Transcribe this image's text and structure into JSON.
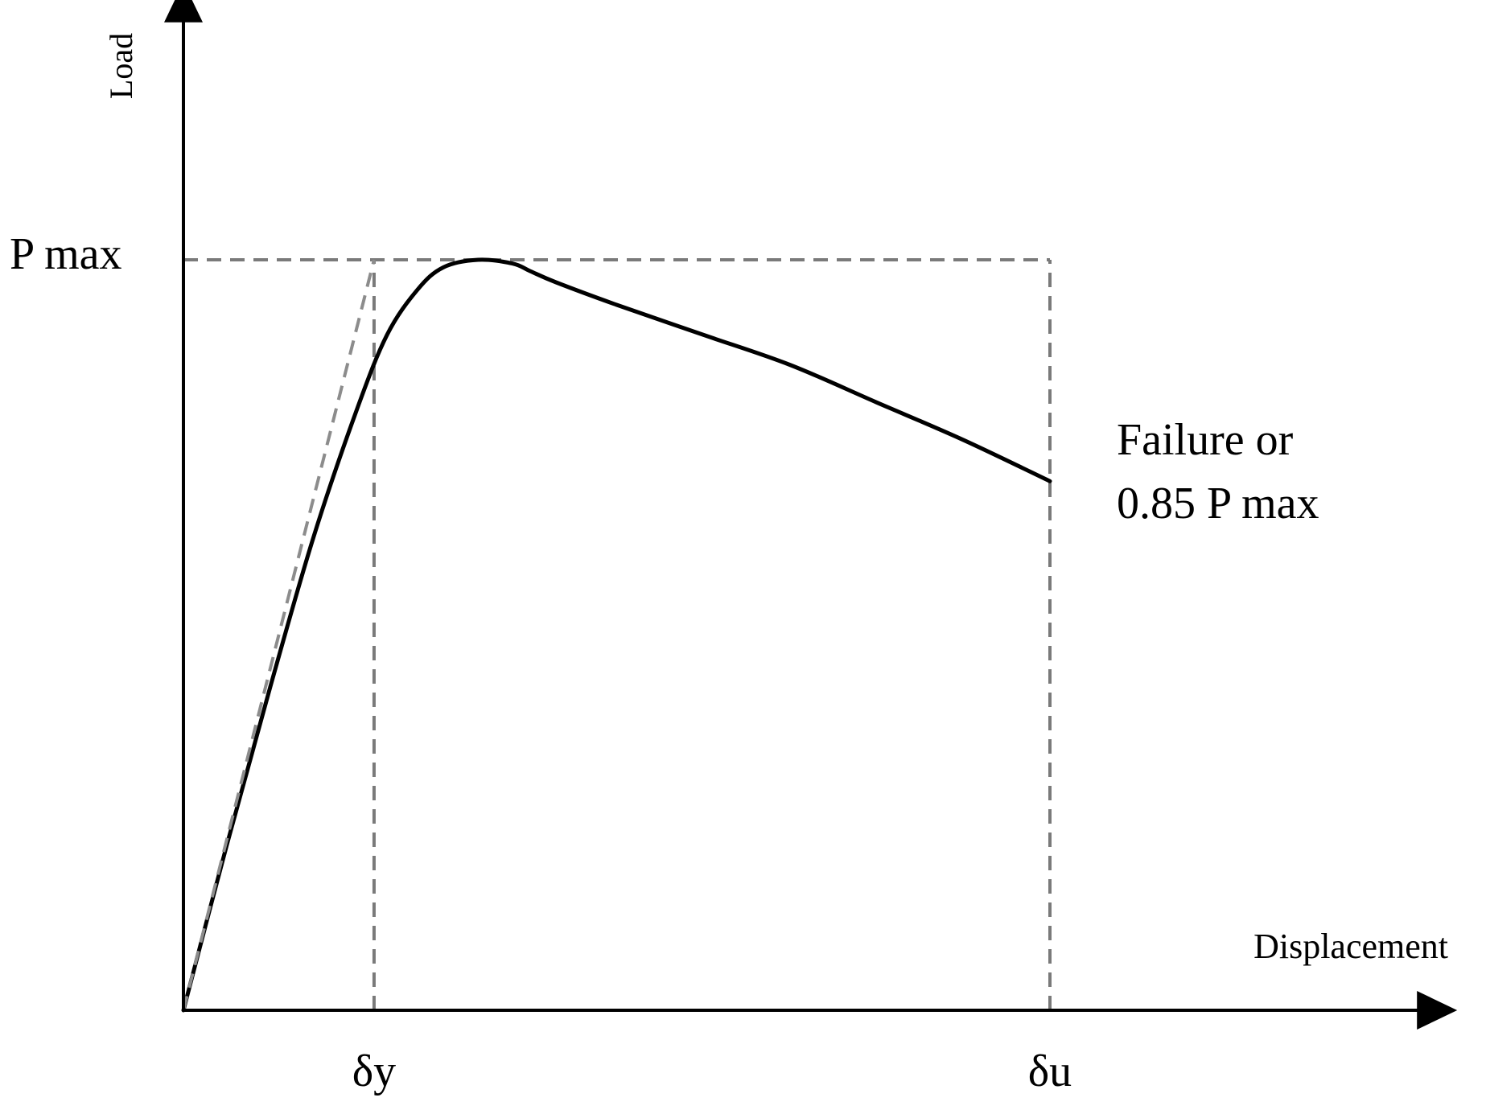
{
  "chart_data": {
    "type": "line",
    "xlabel": "Displacement",
    "ylabel": "Load",
    "x_ticks": [
      "δy",
      "δu"
    ],
    "y_ticks": [
      "P max"
    ],
    "annotation": {
      "line1": "Failure or",
      "line2": "0.85 P max"
    },
    "grid": false,
    "xlim": [
      0,
      1.47
    ],
    "ylim": [
      0,
      1.37
    ],
    "series": [
      {
        "style": "solid",
        "x": [
          0,
          0.05,
          0.1,
          0.15,
          0.2,
          0.235,
          0.27,
          0.3,
          0.34,
          0.38,
          0.4,
          0.43,
          0.5,
          0.6,
          0.7,
          0.8,
          0.9,
          1.0
        ],
        "y": [
          0,
          0.22,
          0.43,
          0.63,
          0.8,
          0.9,
          0.96,
          0.99,
          1.0,
          0.995,
          0.985,
          0.97,
          0.94,
          0.9,
          0.86,
          0.81,
          0.76,
          0.705
        ]
      },
      {
        "style": "dashed",
        "x": [
          0,
          0.22
        ],
        "y": [
          0,
          1.0
        ]
      }
    ],
    "reference_lines": {
      "p_max": 1.0,
      "delta_y": 0.22,
      "delta_u": 1.0
    }
  }
}
